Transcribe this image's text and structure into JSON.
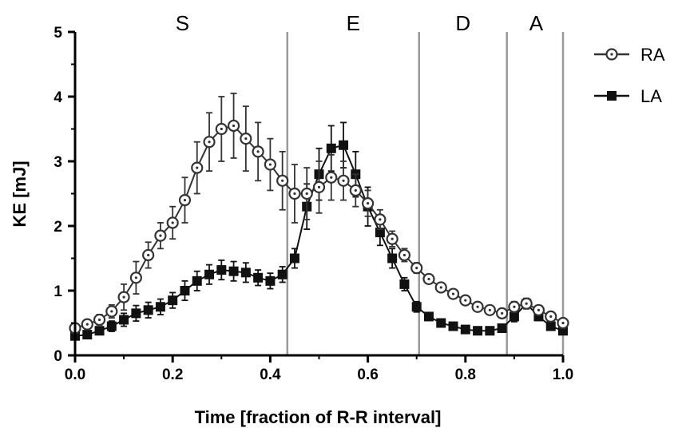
{
  "chart_data": {
    "type": "line",
    "title": "",
    "xlabel": "Time [fraction of R-R interval]",
    "ylabel": "KE [mJ]",
    "xlim": [
      0.0,
      1.0
    ],
    "ylim": [
      0,
      5
    ],
    "x_ticks": [
      "0.0",
      "0.2",
      "0.4",
      "0.6",
      "0.8",
      "1.0"
    ],
    "y_ticks": [
      "0",
      "1",
      "2",
      "3",
      "4",
      "5"
    ],
    "grid": false,
    "legend_position": "right",
    "phase_boundaries": [
      0.435,
      0.705,
      0.885,
      1.0
    ],
    "phases": [
      {
        "label": "S",
        "x": 0.22
      },
      {
        "label": "E",
        "x": 0.57
      },
      {
        "label": "D",
        "x": 0.795
      },
      {
        "label": "A",
        "x": 0.945
      }
    ],
    "series": [
      {
        "name": "RA",
        "marker": "open-circle-dot",
        "color": "#333333",
        "x": [
          0.0,
          0.025,
          0.05,
          0.075,
          0.1,
          0.125,
          0.15,
          0.175,
          0.2,
          0.225,
          0.25,
          0.275,
          0.3,
          0.325,
          0.35,
          0.375,
          0.4,
          0.425,
          0.45,
          0.475,
          0.5,
          0.525,
          0.55,
          0.575,
          0.6,
          0.625,
          0.65,
          0.675,
          0.7,
          0.725,
          0.75,
          0.775,
          0.8,
          0.825,
          0.85,
          0.875,
          0.9,
          0.925,
          0.95,
          0.975,
          1.0
        ],
        "y": [
          0.42,
          0.48,
          0.55,
          0.68,
          0.9,
          1.2,
          1.55,
          1.85,
          2.05,
          2.4,
          2.9,
          3.3,
          3.5,
          3.55,
          3.35,
          3.15,
          2.95,
          2.7,
          2.5,
          2.5,
          2.6,
          2.75,
          2.7,
          2.55,
          2.35,
          2.1,
          1.8,
          1.55,
          1.35,
          1.18,
          1.05,
          0.95,
          0.85,
          0.75,
          0.7,
          0.65,
          0.75,
          0.8,
          0.7,
          0.6,
          0.5
        ],
        "err": [
          0.05,
          0.05,
          0.08,
          0.1,
          0.2,
          0.25,
          0.2,
          0.2,
          0.25,
          0.35,
          0.4,
          0.45,
          0.5,
          0.5,
          0.5,
          0.45,
          0.4,
          0.45,
          0.45,
          0.4,
          0.4,
          0.35,
          0.3,
          0.25,
          0.2,
          0.15,
          0.12,
          0.1,
          0.08,
          0.06,
          0.05,
          0.05,
          0.05,
          0.05,
          0.05,
          0.05,
          0.08,
          0.08,
          0.06,
          0.05,
          0.05
        ]
      },
      {
        "name": "LA",
        "marker": "filled-square",
        "color": "#111111",
        "x": [
          0.0,
          0.025,
          0.05,
          0.075,
          0.1,
          0.125,
          0.15,
          0.175,
          0.2,
          0.225,
          0.25,
          0.275,
          0.3,
          0.325,
          0.35,
          0.375,
          0.4,
          0.425,
          0.45,
          0.475,
          0.5,
          0.525,
          0.55,
          0.575,
          0.6,
          0.625,
          0.65,
          0.675,
          0.7,
          0.725,
          0.75,
          0.775,
          0.8,
          0.825,
          0.85,
          0.875,
          0.9,
          0.925,
          0.95,
          0.975,
          1.0
        ],
        "y": [
          0.3,
          0.32,
          0.38,
          0.45,
          0.55,
          0.65,
          0.7,
          0.75,
          0.85,
          1.0,
          1.15,
          1.25,
          1.32,
          1.3,
          1.28,
          1.2,
          1.15,
          1.25,
          1.5,
          2.3,
          2.8,
          3.2,
          3.25,
          2.8,
          2.3,
          1.9,
          1.5,
          1.1,
          0.75,
          0.6,
          0.5,
          0.45,
          0.4,
          0.38,
          0.38,
          0.42,
          0.6,
          0.8,
          0.6,
          0.45,
          0.38
        ],
        "err": [
          0.05,
          0.05,
          0.05,
          0.08,
          0.1,
          0.12,
          0.12,
          0.12,
          0.12,
          0.15,
          0.15,
          0.15,
          0.15,
          0.15,
          0.15,
          0.12,
          0.12,
          0.12,
          0.15,
          0.35,
          0.4,
          0.35,
          0.35,
          0.35,
          0.3,
          0.2,
          0.15,
          0.1,
          0.08,
          0.06,
          0.05,
          0.05,
          0.05,
          0.05,
          0.05,
          0.05,
          0.08,
          0.08,
          0.06,
          0.05,
          0.05
        ]
      }
    ]
  }
}
